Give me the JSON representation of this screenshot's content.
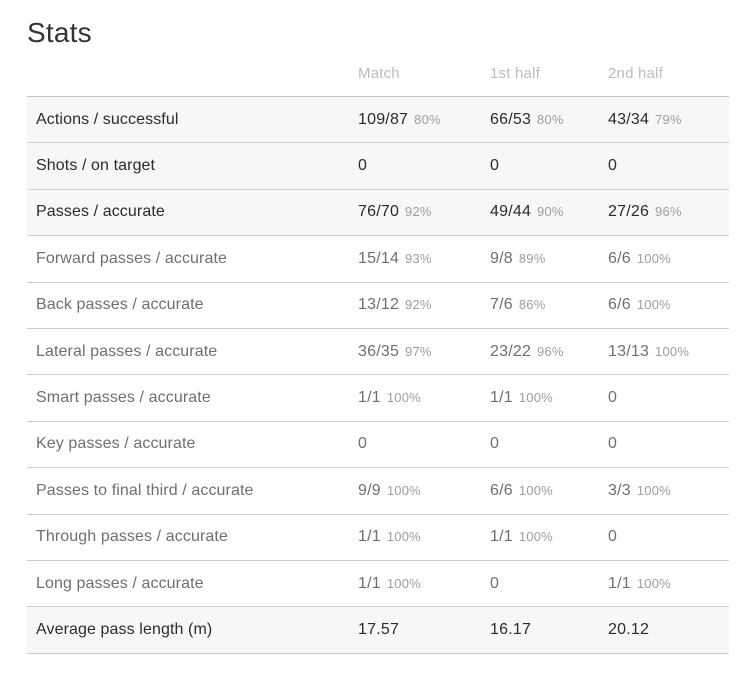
{
  "title": "Stats",
  "colors": {
    "emphasis_row_background": "#f7f7f7",
    "emphasis_text": "#2b2b2b",
    "secondary_text": "#6f6f6f",
    "muted_percentage_text": "#9e9e9e",
    "header_text": "#bdbdbd",
    "divider": "#cecece"
  },
  "table": {
    "columns": [
      "Match",
      "1st half",
      "2nd half"
    ],
    "rows": [
      {
        "label": "Actions / successful",
        "emphasis": true,
        "cells": [
          {
            "value": "109/87",
            "pct": "80%"
          },
          {
            "value": "66/53",
            "pct": "80%"
          },
          {
            "value": "43/34",
            "pct": "79%"
          }
        ]
      },
      {
        "label": "Shots / on target",
        "emphasis": true,
        "cells": [
          {
            "value": "0"
          },
          {
            "value": "0"
          },
          {
            "value": "0"
          }
        ]
      },
      {
        "label": "Passes / accurate",
        "emphasis": true,
        "cells": [
          {
            "value": "76/70",
            "pct": "92%"
          },
          {
            "value": "49/44",
            "pct": "90%"
          },
          {
            "value": "27/26",
            "pct": "96%"
          }
        ]
      },
      {
        "label": "Forward passes / accurate",
        "emphasis": false,
        "cells": [
          {
            "value": "15/14",
            "pct": "93%"
          },
          {
            "value": "9/8",
            "pct": "89%"
          },
          {
            "value": "6/6",
            "pct": "100%"
          }
        ]
      },
      {
        "label": "Back passes / accurate",
        "emphasis": false,
        "cells": [
          {
            "value": "13/12",
            "pct": "92%"
          },
          {
            "value": "7/6",
            "pct": "86%"
          },
          {
            "value": "6/6",
            "pct": "100%"
          }
        ]
      },
      {
        "label": "Lateral passes / accurate",
        "emphasis": false,
        "cells": [
          {
            "value": "36/35",
            "pct": "97%"
          },
          {
            "value": "23/22",
            "pct": "96%"
          },
          {
            "value": "13/13",
            "pct": "100%"
          }
        ]
      },
      {
        "label": "Smart passes / accurate",
        "emphasis": false,
        "cells": [
          {
            "value": "1/1",
            "pct": "100%"
          },
          {
            "value": "1/1",
            "pct": "100%"
          },
          {
            "value": "0"
          }
        ]
      },
      {
        "label": "Key passes / accurate",
        "emphasis": false,
        "cells": [
          {
            "value": "0"
          },
          {
            "value": "0"
          },
          {
            "value": "0"
          }
        ]
      },
      {
        "label": "Passes to final third / accurate",
        "emphasis": false,
        "cells": [
          {
            "value": "9/9",
            "pct": "100%"
          },
          {
            "value": "6/6",
            "pct": "100%"
          },
          {
            "value": "3/3",
            "pct": "100%"
          }
        ]
      },
      {
        "label": "Through passes / accurate",
        "emphasis": false,
        "cells": [
          {
            "value": "1/1",
            "pct": "100%"
          },
          {
            "value": "1/1",
            "pct": "100%"
          },
          {
            "value": "0"
          }
        ]
      },
      {
        "label": "Long passes / accurate",
        "emphasis": false,
        "cells": [
          {
            "value": "1/1",
            "pct": "100%"
          },
          {
            "value": "0"
          },
          {
            "value": "1/1",
            "pct": "100%"
          }
        ]
      },
      {
        "label": "Average pass length (m)",
        "emphasis": true,
        "cells": [
          {
            "value": "17.57"
          },
          {
            "value": "16.17"
          },
          {
            "value": "20.12"
          }
        ]
      }
    ]
  }
}
